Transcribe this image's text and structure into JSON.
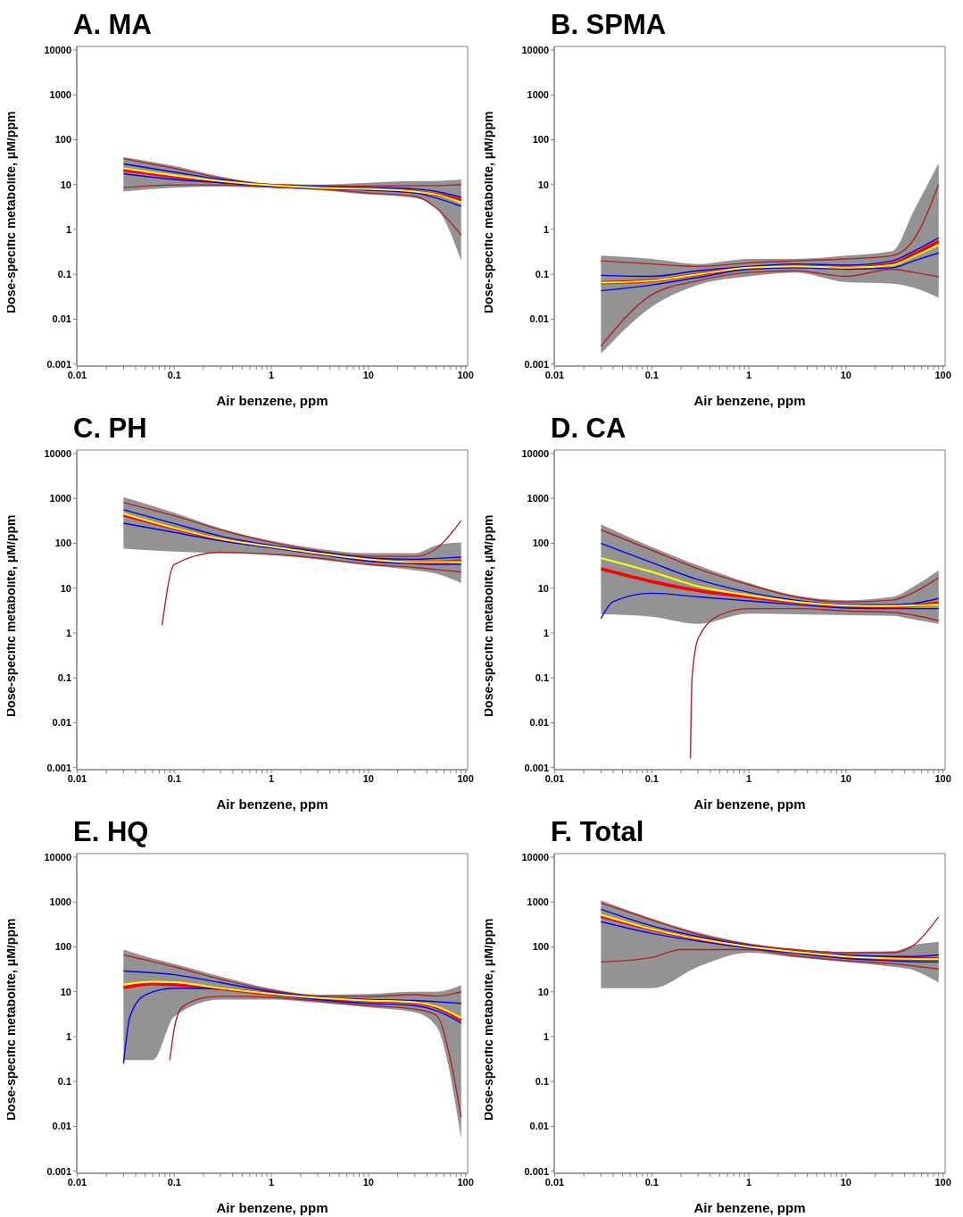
{
  "chart_data": [
    {
      "type": "line",
      "title": "A. MA",
      "xlabel": "Air benzene, ppm",
      "ylabel": "Dose-specific metabolite, μM/ppm",
      "log": "xy",
      "xlim": [
        0.0099,
        105
      ],
      "ylim": [
        0.0009,
        12000
      ],
      "xticks": [
        0.01,
        {
          "value": 0.02,
          "label": null
        },
        {
          "value": 0.03,
          "label": null
        },
        {
          "value": 0.04,
          "label": null
        },
        {
          "value": 0.05,
          "label": null
        },
        {
          "value": 0.06,
          "label": null
        },
        {
          "value": 0.07,
          "label": null
        },
        {
          "value": 0.08,
          "label": null
        },
        {
          "value": 0.09,
          "label": null
        },
        0.1,
        {
          "value": 0.2,
          "label": null
        },
        {
          "value": 0.3,
          "label": null
        },
        {
          "value": 0.4,
          "label": null
        },
        {
          "value": 0.5,
          "label": null
        },
        {
          "value": 0.6,
          "label": null
        },
        {
          "value": 0.7,
          "label": null
        },
        {
          "value": 0.8,
          "label": null
        },
        {
          "value": 0.9,
          "label": null
        },
        1,
        {
          "value": 2,
          "label": null
        },
        {
          "value": 3,
          "label": null
        },
        {
          "value": 4,
          "label": null
        },
        {
          "value": 5,
          "label": null
        },
        {
          "value": 6,
          "label": null
        },
        {
          "value": 7,
          "label": null
        },
        {
          "value": 8,
          "label": null
        },
        {
          "value": 9,
          "label": null
        },
        10,
        {
          "value": 20,
          "label": null
        },
        {
          "value": 30,
          "label": null
        },
        {
          "value": 40,
          "label": null
        },
        {
          "value": 50,
          "label": null
        },
        {
          "value": 60,
          "label": null
        },
        {
          "value": 70,
          "label": null
        },
        {
          "value": 80,
          "label": null
        },
        {
          "value": 90,
          "label": null
        },
        100
      ],
      "yticks": [
        0.001,
        0.01,
        0.1,
        1,
        10,
        100,
        1000,
        10000
      ],
      "series": [
        {
          "color": "#b22222",
          "x": [
            0.03,
            0.1,
            0.3,
            1,
            3,
            10,
            30,
            50,
            90
          ],
          "values": [
            38,
            23,
            14,
            10,
            9.5,
            9.2,
            9.5,
            9.5,
            10
          ]
        },
        {
          "color": "#b22222",
          "x": [
            0.03,
            0.1,
            0.3,
            1,
            3,
            10,
            30,
            50,
            90
          ],
          "values": [
            8.5,
            9.8,
            9.8,
            8.8,
            8,
            6.5,
            5.5,
            3,
            0.75
          ]
        },
        {
          "color": "#0000ff",
          "x": [
            0.03,
            0.1,
            0.3,
            1,
            3,
            10,
            30,
            50,
            90
          ],
          "values": [
            29,
            19,
            13,
            9.8,
            9,
            8.5,
            8,
            7,
            5.2
          ]
        },
        {
          "color": "#0000ff",
          "x": [
            0.03,
            0.1,
            0.3,
            1,
            3,
            10,
            30,
            50,
            90
          ],
          "values": [
            17.5,
            13,
            11,
            9.2,
            8.3,
            7.5,
            6.5,
            5,
            3.3
          ]
        },
        {
          "color": "#ffff00",
          "x": [
            0.03,
            0.1,
            0.3,
            1,
            3,
            10,
            30,
            50,
            90
          ],
          "values": [
            23,
            16,
            12,
            9.6,
            8.5,
            8,
            7,
            6,
            4
          ]
        },
        {
          "color": "#ff0000",
          "x": [
            0.03,
            0.1,
            0.3,
            1,
            3,
            10,
            30,
            50,
            90
          ],
          "values": [
            21,
            15,
            11.5,
            9.5,
            8.5,
            8,
            7,
            6,
            4.5
          ],
          "lower": [
            7,
            8.5,
            9,
            8.5,
            7.5,
            6,
            5,
            3,
            0.2
          ],
          "upper": [
            41,
            26,
            15,
            10.5,
            10,
            11,
            12,
            12,
            13
          ]
        }
      ]
    },
    {
      "type": "line",
      "title": "B. SPMA",
      "xlabel": "Air benzene, ppm",
      "ylabel": "Dose-specific metabolite, μM/ppm",
      "log": "xy",
      "xlim": [
        0.0099,
        105
      ],
      "ylim": [
        0.0009,
        12000
      ],
      "xticks": [
        0.01,
        {
          "value": 0.02,
          "label": null
        },
        {
          "value": 0.03,
          "label": null
        },
        {
          "value": 0.04,
          "label": null
        },
        {
          "value": 0.05,
          "label": null
        },
        {
          "value": 0.06,
          "label": null
        },
        {
          "value": 0.07,
          "label": null
        },
        {
          "value": 0.08,
          "label": null
        },
        {
          "value": 0.09,
          "label": null
        },
        0.1,
        {
          "value": 0.2,
          "label": null
        },
        {
          "value": 0.3,
          "label": null
        },
        {
          "value": 0.4,
          "label": null
        },
        {
          "value": 0.5,
          "label": null
        },
        {
          "value": 0.6,
          "label": null
        },
        {
          "value": 0.7,
          "label": null
        },
        {
          "value": 0.8,
          "label": null
        },
        {
          "value": 0.9,
          "label": null
        },
        1,
        {
          "value": 2,
          "label": null
        },
        {
          "value": 3,
          "label": null
        },
        {
          "value": 4,
          "label": null
        },
        {
          "value": 5,
          "label": null
        },
        {
          "value": 6,
          "label": null
        },
        {
          "value": 7,
          "label": null
        },
        {
          "value": 8,
          "label": null
        },
        {
          "value": 9,
          "label": null
        },
        10,
        {
          "value": 20,
          "label": null
        },
        {
          "value": 30,
          "label": null
        },
        {
          "value": 40,
          "label": null
        },
        {
          "value": 50,
          "label": null
        },
        {
          "value": 60,
          "label": null
        },
        {
          "value": 70,
          "label": null
        },
        {
          "value": 80,
          "label": null
        },
        {
          "value": 90,
          "label": null
        },
        100
      ],
      "yticks": [
        0.001,
        0.01,
        0.1,
        1,
        10,
        100,
        1000,
        10000
      ],
      "series": [
        {
          "color": "#b22222",
          "x": [
            0.03,
            0.1,
            0.3,
            1,
            3,
            10,
            30,
            50,
            90
          ],
          "values": [
            0.2,
            0.17,
            0.15,
            0.18,
            0.2,
            0.22,
            0.26,
            0.6,
            10
          ]
        },
        {
          "color": "#b22222",
          "x": [
            0.03,
            0.1,
            0.3,
            1,
            3,
            10,
            30,
            50,
            90
          ],
          "values": [
            0.0025,
            0.035,
            0.072,
            0.11,
            0.12,
            0.09,
            0.13,
            0.11,
            0.088
          ]
        },
        {
          "color": "#0000ff",
          "x": [
            0.03,
            0.1,
            0.3,
            1,
            3,
            10,
            30,
            50,
            90
          ],
          "values": [
            0.095,
            0.09,
            0.12,
            0.15,
            0.17,
            0.16,
            0.2,
            0.33,
            0.65
          ]
        },
        {
          "color": "#0000ff",
          "x": [
            0.03,
            0.1,
            0.3,
            1,
            3,
            10,
            30,
            50,
            90
          ],
          "values": [
            0.043,
            0.058,
            0.085,
            0.13,
            0.14,
            0.13,
            0.14,
            0.2,
            0.3
          ]
        },
        {
          "color": "#ffff00",
          "x": [
            0.03,
            0.1,
            0.3,
            1,
            3,
            10,
            30,
            50,
            90
          ],
          "values": [
            0.065,
            0.072,
            0.1,
            0.14,
            0.15,
            0.14,
            0.16,
            0.25,
            0.45
          ]
        },
        {
          "color": "#ff0000",
          "x": [
            0.03,
            0.1,
            0.3,
            1,
            3,
            10,
            30,
            50,
            90
          ],
          "values": [
            0.065,
            0.072,
            0.1,
            0.14,
            0.15,
            0.14,
            0.17,
            0.28,
            0.54
          ],
          "lower": [
            0.0017,
            0.019,
            0.058,
            0.09,
            0.11,
            0.067,
            0.062,
            0.05,
            0.03
          ],
          "upper": [
            0.26,
            0.22,
            0.17,
            0.22,
            0.22,
            0.26,
            0.33,
            2.6,
            30
          ]
        }
      ]
    },
    {
      "type": "line",
      "title": "C. PH",
      "xlabel": "Air benzene, ppm",
      "ylabel": "Dose-specific metabolite, μM/ppm",
      "log": "xy",
      "xlim": [
        0.0099,
        105
      ],
      "ylim": [
        0.0009,
        12000
      ],
      "xticks": [
        0.01,
        {
          "value": 0.02,
          "label": null
        },
        {
          "value": 0.03,
          "label": null
        },
        {
          "value": 0.04,
          "label": null
        },
        {
          "value": 0.05,
          "label": null
        },
        {
          "value": 0.06,
          "label": null
        },
        {
          "value": 0.07,
          "label": null
        },
        {
          "value": 0.08,
          "label": null
        },
        {
          "value": 0.09,
          "label": null
        },
        0.1,
        {
          "value": 0.2,
          "label": null
        },
        {
          "value": 0.3,
          "label": null
        },
        {
          "value": 0.4,
          "label": null
        },
        {
          "value": 0.5,
          "label": null
        },
        {
          "value": 0.6,
          "label": null
        },
        {
          "value": 0.7,
          "label": null
        },
        {
          "value": 0.8,
          "label": null
        },
        {
          "value": 0.9,
          "label": null
        },
        1,
        {
          "value": 2,
          "label": null
        },
        {
          "value": 3,
          "label": null
        },
        {
          "value": 4,
          "label": null
        },
        {
          "value": 5,
          "label": null
        },
        {
          "value": 6,
          "label": null
        },
        {
          "value": 7,
          "label": null
        },
        {
          "value": 8,
          "label": null
        },
        {
          "value": 9,
          "label": null
        },
        10,
        {
          "value": 20,
          "label": null
        },
        {
          "value": 30,
          "label": null
        },
        {
          "value": 40,
          "label": null
        },
        {
          "value": 50,
          "label": null
        },
        {
          "value": 60,
          "label": null
        },
        {
          "value": 70,
          "label": null
        },
        {
          "value": 80,
          "label": null
        },
        {
          "value": 90,
          "label": null
        },
        100
      ],
      "yticks": [
        0.001,
        0.01,
        0.1,
        1,
        10,
        100,
        1000,
        10000
      ],
      "series": [
        {
          "color": "#b22222",
          "x": [
            0.03,
            0.1,
            0.3,
            1,
            3,
            10,
            30,
            50,
            90
          ],
          "values": [
            810,
            410,
            200,
            105,
            68,
            51,
            51,
            76,
            320
          ]
        },
        {
          "color": "#b22222",
          "x": [
            0.075,
            0.1,
            0.3,
            1,
            3,
            10,
            30,
            50,
            90
          ],
          "values": [
            1.5,
            34,
            63,
            57,
            47,
            34,
            29,
            26,
            23
          ]
        },
        {
          "color": "#0000ff",
          "x": [
            0.03,
            0.1,
            0.3,
            1,
            3,
            10,
            30,
            50,
            90
          ],
          "values": [
            560,
            275,
            145,
            90,
            65,
            47,
            44,
            46,
            49
          ]
        },
        {
          "color": "#0000ff",
          "x": [
            0.03,
            0.1,
            0.3,
            1,
            3,
            10,
            30,
            50,
            90
          ],
          "values": [
            280,
            175,
            114,
            79,
            57,
            40,
            35,
            34,
            34
          ]
        },
        {
          "color": "#ffff00",
          "x": [
            0.03,
            0.1,
            0.3,
            1,
            3,
            10,
            30,
            50,
            90
          ],
          "values": [
            460,
            220,
            125,
            84,
            60,
            44,
            38,
            38,
            38
          ]
        },
        {
          "color": "#ff0000",
          "x": [
            0.03,
            0.1,
            0.3,
            1,
            3,
            10,
            30,
            50,
            90
          ],
          "values": [
            430,
            215,
            123,
            83,
            60,
            44,
            38,
            38,
            41
          ],
          "lower": [
            76,
            65,
            60,
            55,
            44,
            32,
            25,
            21,
            13
          ],
          "upper": [
            1070,
            480,
            215,
            114,
            76,
            60,
            60,
            90,
            105
          ]
        }
      ]
    },
    {
      "type": "line",
      "title": "D. CA",
      "xlabel": "Air benzene, ppm",
      "ylabel": "Dose-specific metabolite, μM/ppm",
      "log": "xy",
      "xlim": [
        0.0099,
        105
      ],
      "ylim": [
        0.0009,
        12000
      ],
      "xticks": [
        0.01,
        {
          "value": 0.02,
          "label": null
        },
        {
          "value": 0.03,
          "label": null
        },
        {
          "value": 0.04,
          "label": null
        },
        {
          "value": 0.05,
          "label": null
        },
        {
          "value": 0.06,
          "label": null
        },
        {
          "value": 0.07,
          "label": null
        },
        {
          "value": 0.08,
          "label": null
        },
        {
          "value": 0.09,
          "label": null
        },
        0.1,
        {
          "value": 0.2,
          "label": null
        },
        {
          "value": 0.3,
          "label": null
        },
        {
          "value": 0.4,
          "label": null
        },
        {
          "value": 0.5,
          "label": null
        },
        {
          "value": 0.6,
          "label": null
        },
        {
          "value": 0.7,
          "label": null
        },
        {
          "value": 0.8,
          "label": null
        },
        {
          "value": 0.9,
          "label": null
        },
        1,
        {
          "value": 2,
          "label": null
        },
        {
          "value": 3,
          "label": null
        },
        {
          "value": 4,
          "label": null
        },
        {
          "value": 5,
          "label": null
        },
        {
          "value": 6,
          "label": null
        },
        {
          "value": 7,
          "label": null
        },
        {
          "value": 8,
          "label": null
        },
        {
          "value": 9,
          "label": null
        },
        10,
        {
          "value": 20,
          "label": null
        },
        {
          "value": 30,
          "label": null
        },
        {
          "value": 40,
          "label": null
        },
        {
          "value": 50,
          "label": null
        },
        {
          "value": 60,
          "label": null
        },
        {
          "value": 70,
          "label": null
        },
        {
          "value": 80,
          "label": null
        },
        {
          "value": 90,
          "label": null
        },
        100
      ],
      "yticks": [
        0.001,
        0.01,
        0.1,
        1,
        10,
        100,
        1000,
        10000
      ],
      "series": [
        {
          "color": "#b22222",
          "x": [
            0.03,
            0.1,
            0.3,
            1,
            3,
            10,
            30,
            50,
            90
          ],
          "values": [
            200,
            70,
            27,
            12,
            6.4,
            4.9,
            5.4,
            8.1,
            17
          ]
        },
        {
          "color": "#b22222",
          "x": [
            0.25,
            0.26,
            0.3,
            0.5,
            1,
            3,
            10,
            30,
            50,
            90
          ],
          "values": [
            0.0016,
            0.1,
            0.74,
            2.5,
            3.5,
            3.5,
            3.1,
            2.9,
            2.5,
            1.9
          ]
        },
        {
          "color": "#0000ff",
          "x": [
            0.03,
            0.1,
            0.3,
            1,
            3,
            10,
            30,
            50,
            90
          ],
          "values": [
            100,
            37,
            15.5,
            8.1,
            5.4,
            4.3,
            4.3,
            4.6,
            5.9
          ]
        },
        {
          "color": "#0000ff",
          "x": [
            0.03,
            0.04,
            0.1,
            0.3,
            1,
            3,
            10,
            30,
            50,
            90
          ],
          "values": [
            2.1,
            5,
            7.7,
            6.4,
            5.2,
            4.3,
            3.6,
            3.5,
            3.5,
            3.5
          ]
        },
        {
          "color": "#ffff00",
          "x": [
            0.03,
            0.1,
            0.3,
            1,
            3,
            10,
            30,
            50,
            90
          ],
          "values": [
            47,
            23,
            11,
            6.9,
            5,
            4.1,
            4,
            4.1,
            4.3
          ]
        },
        {
          "color": "#ff0000",
          "x": [
            0.03,
            0.1,
            0.3,
            1,
            3,
            10,
            30,
            50,
            90
          ],
          "values": [
            27,
            14,
            8.8,
            6.4,
            4.9,
            4,
            3.8,
            4.1,
            4.6
          ],
          "lower": [
            2.6,
            2.3,
            1.6,
            2.7,
            2.6,
            2.5,
            2.4,
            2,
            1.6
          ],
          "upper": [
            265,
            83,
            32,
            13,
            6.9,
            5.4,
            6.4,
            11,
            25
          ]
        }
      ]
    },
    {
      "type": "line",
      "title": "E. HQ",
      "xlabel": "Air benzene, ppm",
      "ylabel": "Dose-specific metabolite, μM/ppm",
      "log": "xy",
      "xlim": [
        0.0099,
        105
      ],
      "ylim": [
        0.0009,
        12000
      ],
      "xticks": [
        0.01,
        {
          "value": 0.02,
          "label": null
        },
        {
          "value": 0.03,
          "label": null
        },
        {
          "value": 0.04,
          "label": null
        },
        {
          "value": 0.05,
          "label": null
        },
        {
          "value": 0.06,
          "label": null
        },
        {
          "value": 0.07,
          "label": null
        },
        {
          "value": 0.08,
          "label": null
        },
        {
          "value": 0.09,
          "label": null
        },
        0.1,
        {
          "value": 0.2,
          "label": null
        },
        {
          "value": 0.3,
          "label": null
        },
        {
          "value": 0.4,
          "label": null
        },
        {
          "value": 0.5,
          "label": null
        },
        {
          "value": 0.6,
          "label": null
        },
        {
          "value": 0.7,
          "label": null
        },
        {
          "value": 0.8,
          "label": null
        },
        {
          "value": 0.9,
          "label": null
        },
        1,
        {
          "value": 2,
          "label": null
        },
        {
          "value": 3,
          "label": null
        },
        {
          "value": 4,
          "label": null
        },
        {
          "value": 5,
          "label": null
        },
        {
          "value": 6,
          "label": null
        },
        {
          "value": 7,
          "label": null
        },
        {
          "value": 8,
          "label": null
        },
        {
          "value": 9,
          "label": null
        },
        10,
        {
          "value": 20,
          "label": null
        },
        {
          "value": 30,
          "label": null
        },
        {
          "value": 40,
          "label": null
        },
        {
          "value": 50,
          "label": null
        },
        {
          "value": 60,
          "label": null
        },
        {
          "value": 70,
          "label": null
        },
        {
          "value": 80,
          "label": null
        },
        {
          "value": 90,
          "label": null
        },
        100
      ],
      "yticks": [
        0.001,
        0.01,
        0.1,
        1,
        10,
        100,
        1000,
        10000
      ],
      "series": [
        {
          "color": "#b22222",
          "x": [
            0.03,
            0.1,
            0.3,
            1,
            3,
            10,
            30,
            50,
            90
          ],
          "values": [
            66,
            36,
            19,
            10.8,
            8,
            7.9,
            8.6,
            8,
            10
          ]
        },
        {
          "color": "#b22222",
          "x": [
            0.09,
            0.1,
            0.12,
            0.2,
            0.3,
            1,
            3,
            10,
            30,
            50,
            70,
            90
          ],
          "values": [
            0.3,
            1.5,
            4.5,
            7.3,
            7.9,
            7.5,
            6.2,
            4.9,
            4.1,
            3,
            0.3,
            0.016
          ]
        },
        {
          "color": "#0000ff",
          "x": [
            0.03,
            0.1,
            0.3,
            1,
            3,
            10,
            30,
            50,
            90
          ],
          "values": [
            29,
            24,
            16,
            10,
            7.5,
            6.7,
            6.4,
            6,
            5.5
          ]
        },
        {
          "color": "#0000ff",
          "x": [
            0.03,
            0.035,
            0.05,
            0.1,
            0.3,
            1,
            3,
            10,
            30,
            50,
            90
          ],
          "values": [
            0.25,
            2.8,
            8.5,
            12,
            11.7,
            8.8,
            6.7,
            5.5,
            4.9,
            3.8,
            2
          ]
        },
        {
          "color": "#ffff00",
          "x": [
            0.03,
            0.06,
            0.1,
            0.3,
            1,
            3,
            10,
            30,
            50,
            90
          ],
          "values": [
            14.4,
            16.7,
            16.3,
            12,
            9,
            7.3,
            6.4,
            5.8,
            4.7,
            2.6
          ]
        },
        {
          "color": "#ff0000",
          "x": [
            0.03,
            0.06,
            0.1,
            0.3,
            1,
            3,
            10,
            30,
            50,
            90
          ],
          "values": [
            12.3,
            15,
            14.5,
            11.7,
            8.9,
            7.3,
            6.4,
            5.7,
            4.5,
            2.3
          ],
          "lower": [
            0.3,
            0.3,
            2.8,
            6.7,
            6.7,
            5.7,
            4.5,
            3.5,
            1.7,
            0.0053
          ],
          "upper": [
            87,
            55,
            42,
            22,
            11.7,
            8.6,
            8.9,
            10,
            10,
            14
          ]
        }
      ]
    },
    {
      "type": "line",
      "title": "F. Total",
      "xlabel": "Air benzene, ppm",
      "ylabel": "Dose-specific metabolite, μM/ppm",
      "log": "xy",
      "xlim": [
        0.0099,
        105
      ],
      "ylim": [
        0.0009,
        12000
      ],
      "xticks": [
        0.01,
        {
          "value": 0.02,
          "label": null
        },
        {
          "value": 0.03,
          "label": null
        },
        {
          "value": 0.04,
          "label": null
        },
        {
          "value": 0.05,
          "label": null
        },
        {
          "value": 0.06,
          "label": null
        },
        {
          "value": 0.07,
          "label": null
        },
        {
          "value": 0.08,
          "label": null
        },
        {
          "value": 0.09,
          "label": null
        },
        0.1,
        {
          "value": 0.2,
          "label": null
        },
        {
          "value": 0.3,
          "label": null
        },
        {
          "value": 0.4,
          "label": null
        },
        {
          "value": 0.5,
          "label": null
        },
        {
          "value": 0.6,
          "label": null
        },
        {
          "value": 0.7,
          "label": null
        },
        {
          "value": 0.8,
          "label": null
        },
        {
          "value": 0.9,
          "label": null
        },
        1,
        {
          "value": 2,
          "label": null
        },
        {
          "value": 3,
          "label": null
        },
        {
          "value": 4,
          "label": null
        },
        {
          "value": 5,
          "label": null
        },
        {
          "value": 6,
          "label": null
        },
        {
          "value": 7,
          "label": null
        },
        {
          "value": 8,
          "label": null
        },
        {
          "value": 9,
          "label": null
        },
        10,
        {
          "value": 20,
          "label": null
        },
        {
          "value": 30,
          "label": null
        },
        {
          "value": 40,
          "label": null
        },
        {
          "value": 50,
          "label": null
        },
        {
          "value": 60,
          "label": null
        },
        {
          "value": 70,
          "label": null
        },
        {
          "value": 80,
          "label": null
        },
        {
          "value": 90,
          "label": null
        },
        100
      ],
      "yticks": [
        0.001,
        0.01,
        0.1,
        1,
        10,
        100,
        1000,
        10000
      ],
      "series": [
        {
          "color": "#b22222",
          "x": [
            0.03,
            0.1,
            0.3,
            1,
            3,
            10,
            30,
            50,
            90
          ],
          "values": [
            950,
            400,
            190,
            114,
            87,
            74,
            74,
            110,
            465
          ]
        },
        {
          "color": "#b22222",
          "x": [
            0.03,
            0.1,
            0.2,
            0.3,
            1,
            3,
            10,
            30,
            90
          ],
          "values": [
            46,
            58,
            87,
            87,
            87,
            63,
            49,
            42,
            32
          ]
        },
        {
          "color": "#0000ff",
          "x": [
            0.03,
            0.1,
            0.3,
            1,
            3,
            10,
            30,
            50,
            90
          ],
          "values": [
            690,
            295,
            170,
            107,
            80,
            66,
            61,
            61,
            66
          ]
        },
        {
          "color": "#0000ff",
          "x": [
            0.03,
            0.1,
            0.3,
            1,
            3,
            10,
            30,
            50,
            90
          ],
          "values": [
            365,
            200,
            134,
            94,
            72,
            55,
            49,
            47,
            46
          ]
        },
        {
          "color": "#ffff00",
          "x": [
            0.03,
            0.1,
            0.3,
            1,
            3,
            10,
            30,
            50,
            90
          ],
          "values": [
            520,
            250,
            152,
            101,
            78,
            61,
            55,
            54,
            54
          ]
        },
        {
          "color": "#ff0000",
          "x": [
            0.03,
            0.1,
            0.3,
            1,
            3,
            10,
            30,
            50,
            90
          ],
          "values": [
            480,
            245,
            150,
            100,
            78,
            61,
            55,
            54,
            54
          ],
          "lower": [
            12,
            12,
            36,
            74,
            58,
            46,
            36,
            30,
            16
          ],
          "upper": [
            1100,
            430,
            210,
            120,
            89,
            78,
            80,
            110,
            130
          ]
        }
      ]
    }
  ]
}
